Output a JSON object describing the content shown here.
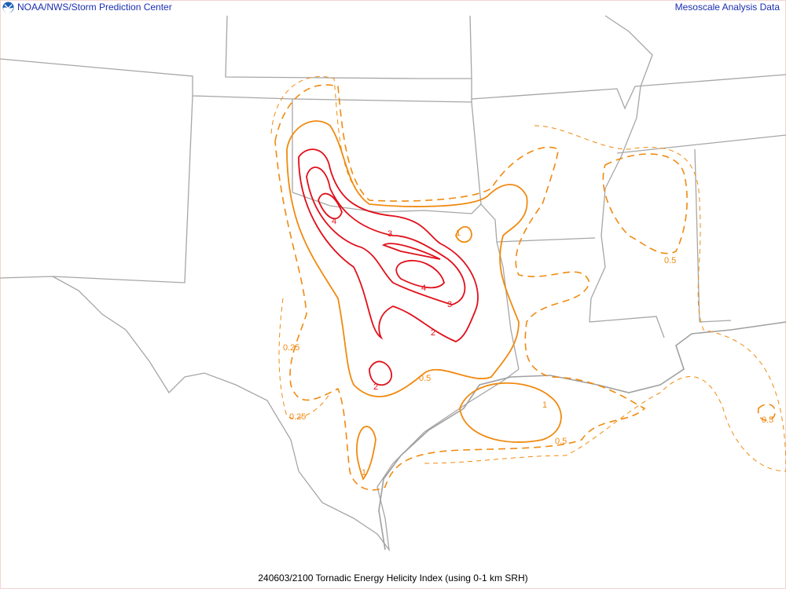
{
  "header": {
    "left_title": "NOAA/NWS/Storm Prediction Center",
    "right_title": "Mesoscale Analysis Data",
    "logo_icon": "noaa-logo-icon"
  },
  "footer": {
    "caption": "240603/2100 Tornadic Energy Helicity Index (using 0-1 km SRH)"
  },
  "colors": {
    "header_text": "#1a2fb0",
    "state_lines": "#a6a6a6",
    "contour_high": "#e0101a",
    "contour_low": "#f08a10"
  },
  "contour_labels": [
    "4",
    "3",
    "4",
    "3",
    "2",
    "2",
    "0.5",
    "1",
    "0.25",
    "0.25",
    "1",
    "1",
    "0.5",
    "0.5",
    "0.5"
  ],
  "contour_levels": [
    0.25,
    0.5,
    1,
    2,
    3,
    4
  ]
}
